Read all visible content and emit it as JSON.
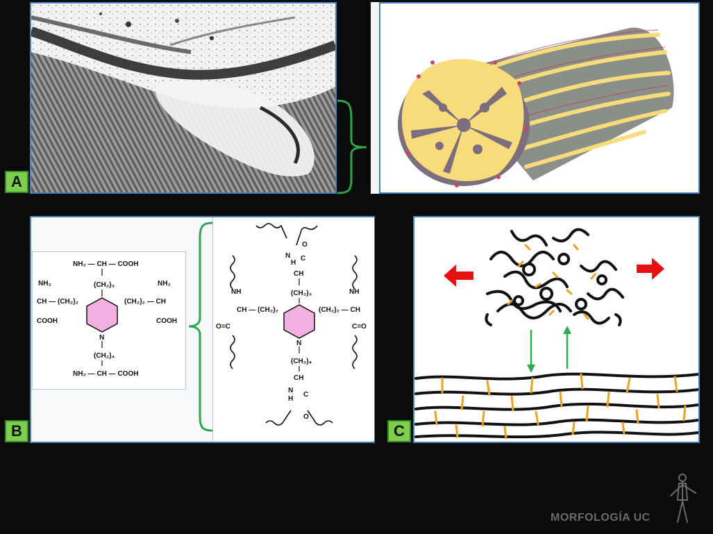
{
  "labels": {
    "a": "A",
    "b": "B",
    "c": "C"
  },
  "chem_left": {
    "top": "NH₂ — CH — COOH",
    "top_chain": "(CH₂)₃",
    "left_nh": "NH₂",
    "left_ch": "CH — (CH₂)₂",
    "left_cooh": "COOH",
    "right_nh": "NH₂",
    "right_ch": "(CH₂)₂ — CH",
    "right_cooh": "COOH",
    "n": "N",
    "bottom_chain": "(CH₂)₄",
    "bottom": "NH₂ — CH — COOH"
  },
  "chem_right": {
    "top_n": "N",
    "top_h": "H",
    "top_c": "C",
    "top_o": "O",
    "top_ch": "CH",
    "top_chain": "(CH₂)₃",
    "left_nh": "NH",
    "left_ch": "CH — (CH₂)₂",
    "left_co": "O=C",
    "right_nh": "NH",
    "right_ch": "(CH₂)₂ — CH",
    "right_co": "C=O",
    "n": "N",
    "bottom_chain": "(CH₂)₄",
    "bottom_ch": "CH",
    "bottom_n": "N",
    "bottom_h": "H",
    "bottom_c": "C",
    "bottom_o": "O"
  },
  "logo_text": "MORFOLOGÍA UC",
  "colors": {
    "background": "#0b0b0b",
    "panel_border": "#4a7fc0",
    "label_fill": "#7ccf4c",
    "bracket": "#2aa84a",
    "arrow_red": "#e81010",
    "arrow_green": "#27b04d",
    "crosslink": "#f0a020",
    "fibril_yellow": "#f8dc7c",
    "ring_pink": "#f3b0e0"
  }
}
